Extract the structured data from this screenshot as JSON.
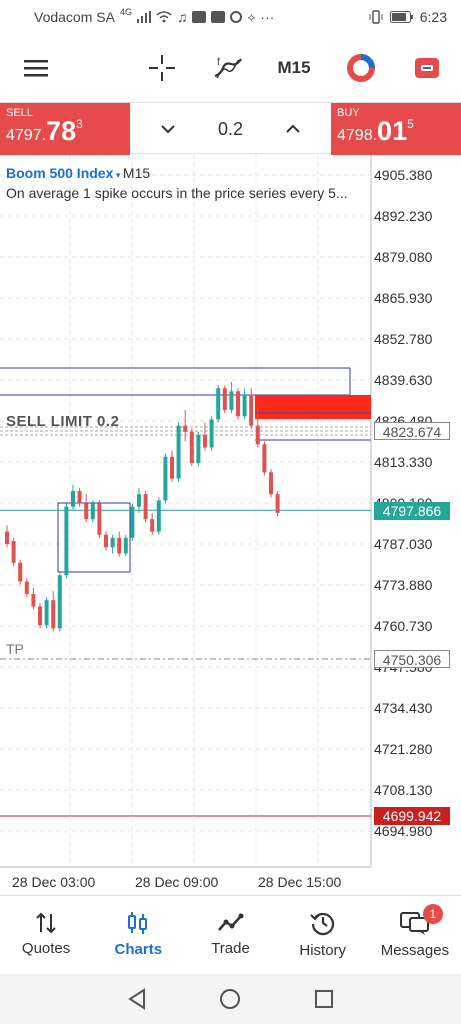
{
  "status": {
    "carrier": "Vodacom SA",
    "network": "4G",
    "dots": "···",
    "time": "6:23"
  },
  "toolbar": {
    "timeframe": "M15",
    "icons": [
      "menu-icon",
      "crosshair-icon",
      "indicators-icon",
      "timeframe",
      "objects-icon",
      "one-click-trading-icon"
    ]
  },
  "trade": {
    "sell_label": "SELL",
    "sell_price_main": "4797.",
    "sell_price_big": "78",
    "sell_price_sup": "3",
    "buy_label": "BUY",
    "buy_price_main": "4798.",
    "buy_price_big": "01",
    "buy_price_sup": "5",
    "lot": "0.2"
  },
  "chart": {
    "symbol": "Boom 500 Index",
    "timeframe": "M15",
    "description": "On average 1 spike occurs in the price series every 5...",
    "sell_limit_label": "SELL LIMIT 0.2",
    "tp_label": "TP",
    "price_boxes": {
      "order_level": "4823.674",
      "current_price": "4797.866",
      "tp_level": "4750.306",
      "alert_level": "4699.942"
    },
    "colors": {
      "bear": "#e05252",
      "bull": "#26a69a",
      "current_line": "#26a69a",
      "alert_line": "#cc1f1f",
      "rect_stroke": "#3a3aa8",
      "supply_zone": "#ff2a1a"
    }
  },
  "chart_data": {
    "type": "candlestick",
    "y_ticks": [
      "4905.380",
      "4892.230",
      "4879.080",
      "4865.930",
      "4852.780",
      "4839.630",
      "4826.480",
      "4813.330",
      "4800.180",
      "4787.030",
      "4773.880",
      "4760.730",
      "4747.580",
      "4734.430",
      "4721.280",
      "4708.130",
      "4694.980"
    ],
    "ylim": [
      4692,
      4909
    ],
    "x_ticks": [
      "28 Dec 03:00",
      "28 Dec 09:00",
      "28 Dec 15:00"
    ],
    "grid": true,
    "candles": [
      {
        "o": 4791,
        "h": 4793,
        "l": 4786,
        "c": 4787
      },
      {
        "o": 4788,
        "h": 4789,
        "l": 4780,
        "c": 4781
      },
      {
        "o": 4781,
        "h": 4782,
        "l": 4774,
        "c": 4775
      },
      {
        "o": 4775,
        "h": 4776,
        "l": 4770,
        "c": 4771
      },
      {
        "o": 4771,
        "h": 4773,
        "l": 4766,
        "c": 4767
      },
      {
        "o": 4767,
        "h": 4768,
        "l": 4760,
        "c": 4761
      },
      {
        "o": 4761,
        "h": 4770,
        "l": 4760,
        "c": 4769
      },
      {
        "o": 4769,
        "h": 4772,
        "l": 4759,
        "c": 4760
      },
      {
        "o": 4760,
        "h": 4778,
        "l": 4759,
        "c": 4777
      },
      {
        "o": 4777,
        "h": 4800,
        "l": 4776,
        "c": 4799
      },
      {
        "o": 4799,
        "h": 4806,
        "l": 4798,
        "c": 4804
      },
      {
        "o": 4804,
        "h": 4805,
        "l": 4799,
        "c": 4800
      },
      {
        "o": 4800,
        "h": 4803,
        "l": 4794,
        "c": 4795
      },
      {
        "o": 4795,
        "h": 4801,
        "l": 4794,
        "c": 4800
      },
      {
        "o": 4800,
        "h": 4801,
        "l": 4789,
        "c": 4790
      },
      {
        "o": 4790,
        "h": 4791,
        "l": 4785,
        "c": 4786
      },
      {
        "o": 4786,
        "h": 4790,
        "l": 4784,
        "c": 4789
      },
      {
        "o": 4789,
        "h": 4791,
        "l": 4783,
        "c": 4784
      },
      {
        "o": 4784,
        "h": 4790,
        "l": 4783,
        "c": 4789
      },
      {
        "o": 4789,
        "h": 4800,
        "l": 4788,
        "c": 4799
      },
      {
        "o": 4799,
        "h": 4805,
        "l": 4797,
        "c": 4803
      },
      {
        "o": 4803,
        "h": 4804,
        "l": 4794,
        "c": 4795
      },
      {
        "o": 4795,
        "h": 4797,
        "l": 4790,
        "c": 4791
      },
      {
        "o": 4791,
        "h": 4802,
        "l": 4790,
        "c": 4801
      },
      {
        "o": 4801,
        "h": 4816,
        "l": 4800,
        "c": 4815
      },
      {
        "o": 4815,
        "h": 4817,
        "l": 4807,
        "c": 4808
      },
      {
        "o": 4808,
        "h": 4826,
        "l": 4807,
        "c": 4825
      },
      {
        "o": 4825,
        "h": 4830,
        "l": 4820,
        "c": 4823
      },
      {
        "o": 4823,
        "h": 4824,
        "l": 4812,
        "c": 4813
      },
      {
        "o": 4813,
        "h": 4823,
        "l": 4812,
        "c": 4822
      },
      {
        "o": 4822,
        "h": 4826,
        "l": 4817,
        "c": 4818
      },
      {
        "o": 4818,
        "h": 4828,
        "l": 4817,
        "c": 4827
      },
      {
        "o": 4827,
        "h": 4838,
        "l": 4826,
        "c": 4837
      },
      {
        "o": 4837,
        "h": 4838,
        "l": 4829,
        "c": 4830
      },
      {
        "o": 4830,
        "h": 4839,
        "l": 4829,
        "c": 4836
      },
      {
        "o": 4836,
        "h": 4837,
        "l": 4827,
        "c": 4828
      },
      {
        "o": 4828,
        "h": 4837,
        "l": 4827,
        "c": 4835
      },
      {
        "o": 4835,
        "h": 4837,
        "l": 4824,
        "c": 4825
      },
      {
        "o": 4825,
        "h": 4831,
        "l": 4818,
        "c": 4819
      },
      {
        "o": 4819,
        "h": 4820,
        "l": 4809,
        "c": 4810
      },
      {
        "o": 4810,
        "h": 4811,
        "l": 4802,
        "c": 4803
      },
      {
        "o": 4803,
        "h": 4804,
        "l": 4796,
        "c": 4797
      }
    ]
  },
  "nav": {
    "items": [
      {
        "label": "Quotes",
        "icon": "quotes-icon"
      },
      {
        "label": "Charts",
        "icon": "charts-icon"
      },
      {
        "label": "Trade",
        "icon": "trade-icon"
      },
      {
        "label": "History",
        "icon": "history-icon"
      },
      {
        "label": "Messages",
        "icon": "messages-icon"
      }
    ],
    "active": "Charts",
    "messages_badge": "1"
  }
}
